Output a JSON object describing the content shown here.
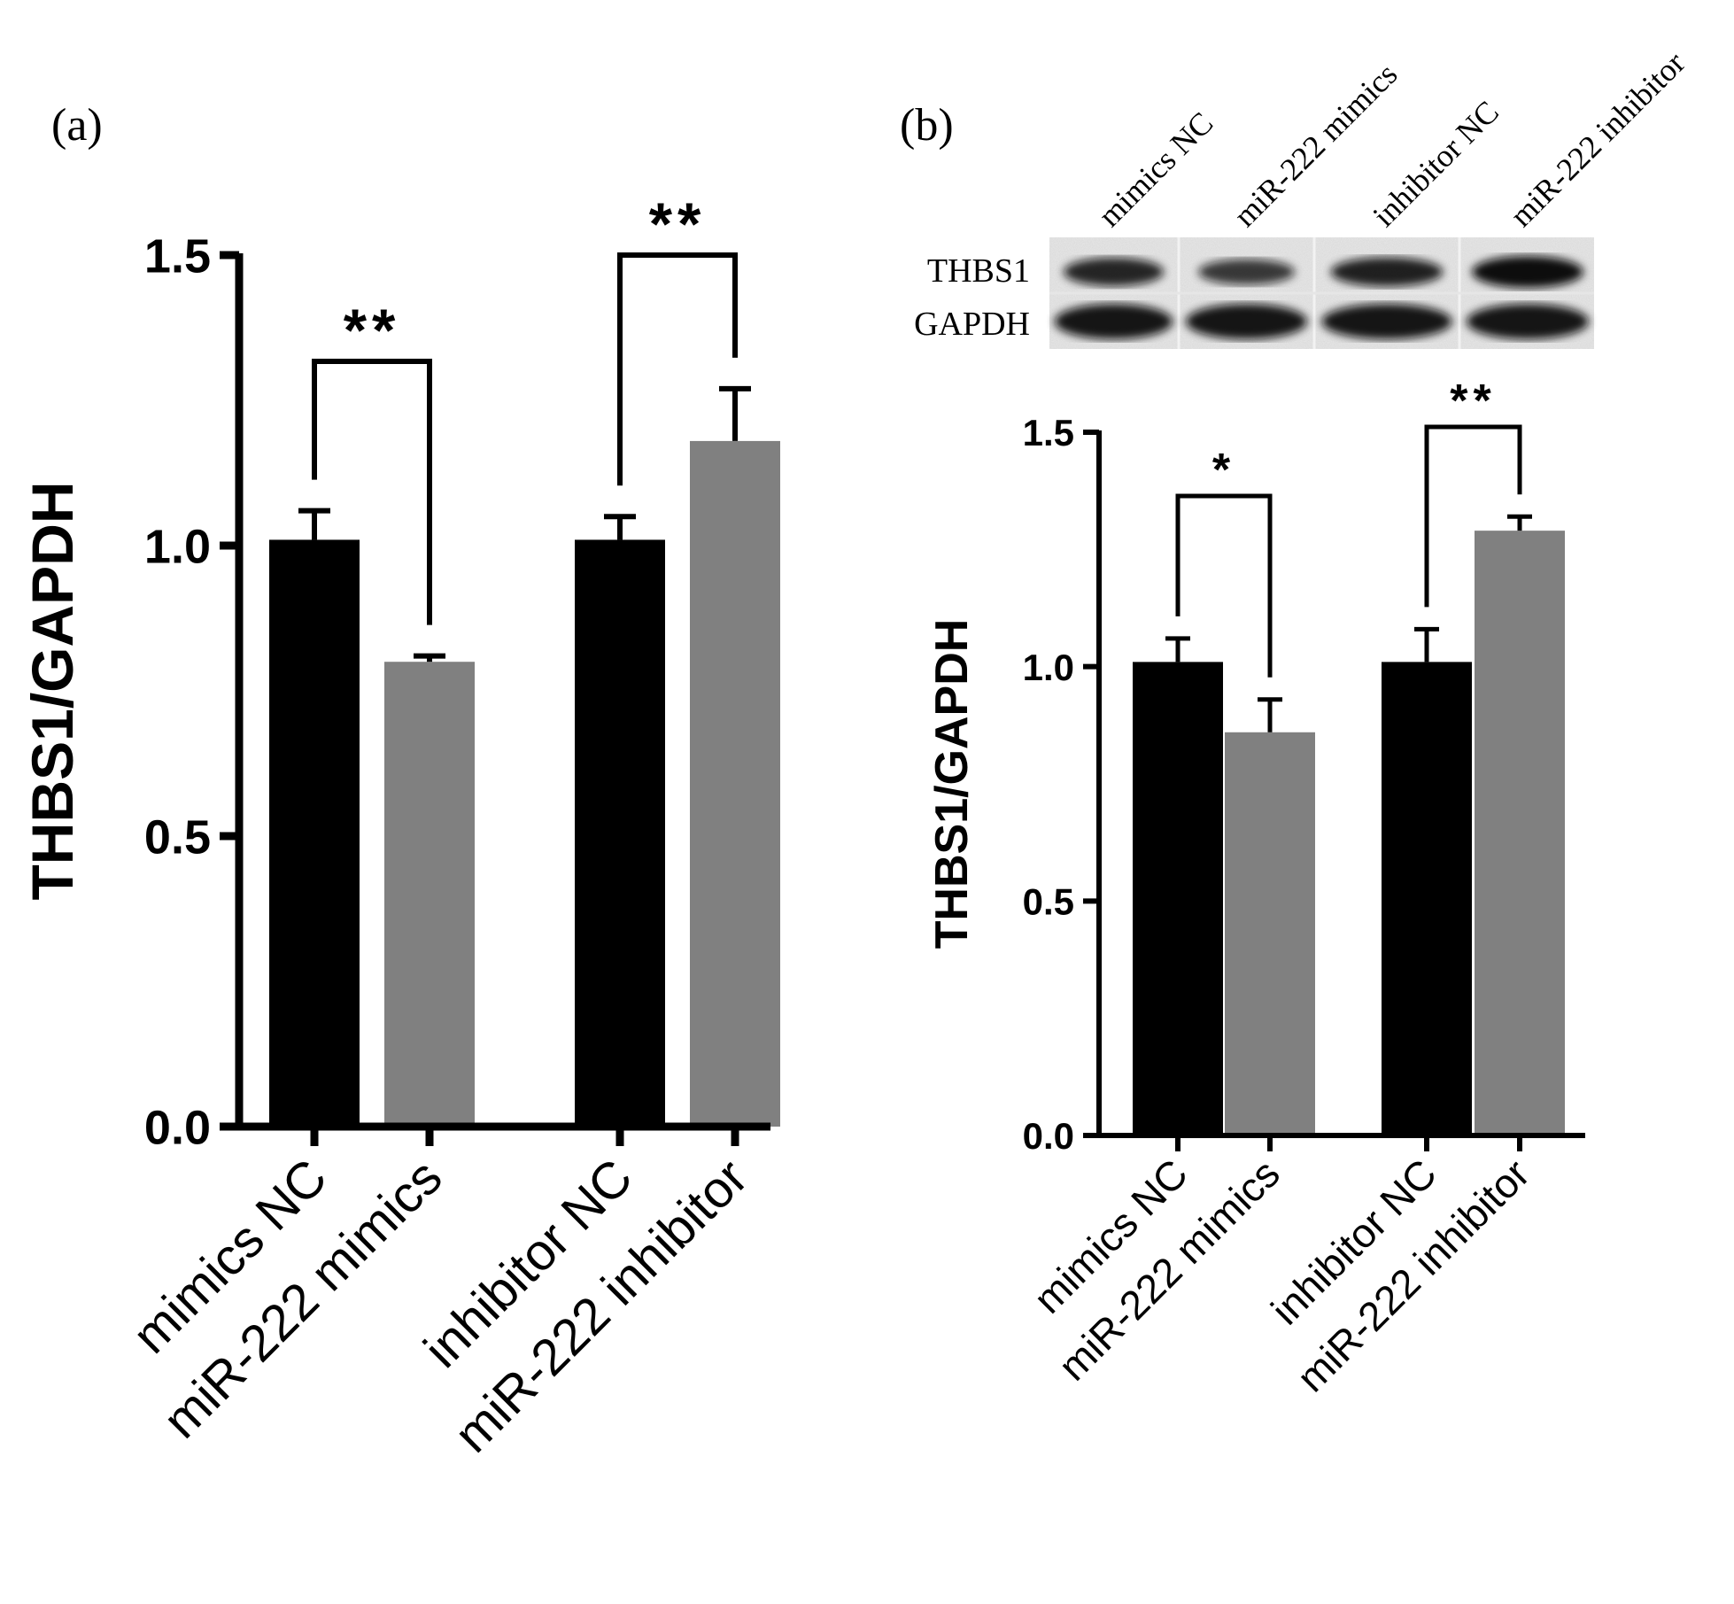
{
  "panels": {
    "a_label": "(a)",
    "b_label": "(b)"
  },
  "blot": {
    "lane_labels": [
      "mimics NC",
      "miR-222 mimics",
      "inhibitor NC",
      "miR-222 inhibitor"
    ],
    "row_labels": [
      "THBS1",
      "GAPDH"
    ],
    "thbs1_intensity": [
      0.75,
      0.55,
      0.8,
      1.0
    ],
    "gapdh_intensity": [
      0.9,
      0.9,
      0.9,
      0.9
    ]
  },
  "colors": {
    "control": "#000000",
    "treatment": "#808080",
    "axis": "#000000"
  },
  "chart_data": [
    {
      "panel": "(a)",
      "type": "bar",
      "categories": [
        "mimics NC",
        "miR-222 mimics",
        "inhibitor NC",
        "miR-222 inhibitor"
      ],
      "values": [
        1.01,
        0.8,
        1.01,
        1.18
      ],
      "errors": [
        0.05,
        0.01,
        0.04,
        0.09
      ],
      "bar_colors": [
        "#000000",
        "#808080",
        "#000000",
        "#808080"
      ],
      "ylabel": "THBS1/GAPDH",
      "ylim": [
        0,
        1.5
      ],
      "yticks": [
        "0.0",
        "0.5",
        "1.0",
        "1.5"
      ],
      "significance": [
        {
          "between": [
            0,
            1
          ],
          "label": "**"
        },
        {
          "between": [
            2,
            3
          ],
          "label": "**"
        }
      ]
    },
    {
      "panel": "(b)",
      "type": "bar",
      "categories": [
        "mimics NC",
        "miR-222 mimics",
        "inhibitor NC",
        "miR-222 inhibitor"
      ],
      "values": [
        1.01,
        0.86,
        1.01,
        1.29
      ],
      "errors": [
        0.05,
        0.07,
        0.07,
        0.03
      ],
      "bar_colors": [
        "#000000",
        "#808080",
        "#000000",
        "#808080"
      ],
      "ylabel": "THBS1/GAPDH",
      "ylim": [
        0,
        1.5
      ],
      "yticks": [
        "0.0",
        "0.5",
        "1.0",
        "1.5"
      ],
      "significance": [
        {
          "between": [
            0,
            1
          ],
          "label": "*"
        },
        {
          "between": [
            2,
            3
          ],
          "label": "**"
        }
      ]
    }
  ]
}
